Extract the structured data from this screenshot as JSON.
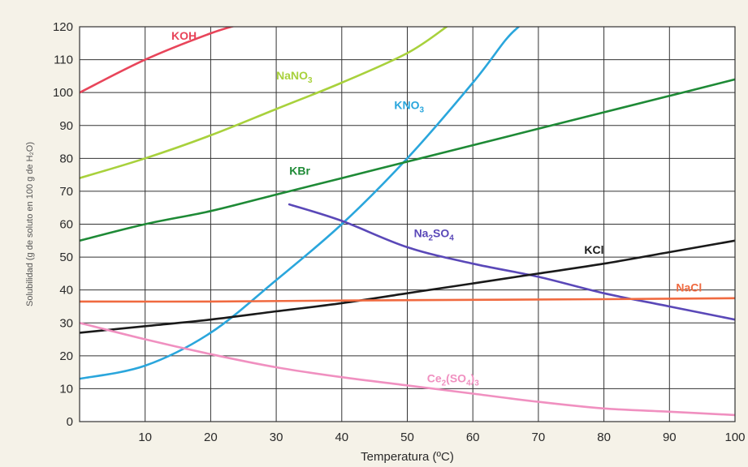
{
  "chart_data": {
    "type": "line",
    "title": "",
    "xlabel": "Temperatura (ºC)",
    "ylabel": "Solubilidad (g de soluto en 100 g de H₂O)",
    "xlim": [
      0,
      100
    ],
    "ylim": [
      0,
      120
    ],
    "x_ticks": [
      10,
      20,
      30,
      40,
      50,
      60,
      70,
      80,
      90,
      100
    ],
    "y_ticks": [
      0,
      10,
      20,
      30,
      40,
      50,
      60,
      70,
      80,
      90,
      100,
      110,
      120
    ],
    "grid": true,
    "legend": "none",
    "series": [
      {
        "name": "KOH",
        "color": "#e8455a",
        "label_at": [
          14,
          116
        ],
        "label_sub": "",
        "x": [
          0,
          10,
          20,
          25
        ],
        "y": [
          100,
          110,
          118,
          121
        ]
      },
      {
        "name": "NaNO",
        "label_sub": "3",
        "color": "#a8d13c",
        "label_at": [
          30,
          104
        ],
        "x": [
          0,
          10,
          20,
          30,
          40,
          50,
          56
        ],
        "y": [
          74,
          80,
          87,
          95,
          103,
          112,
          120
        ]
      },
      {
        "name": "KNO",
        "label_sub": "3",
        "color": "#2aa6dc",
        "label_at": [
          48,
          95
        ],
        "x": [
          0,
          10,
          20,
          30,
          40,
          50,
          60,
          65,
          67
        ],
        "y": [
          13,
          17,
          27,
          43,
          60,
          80,
          103,
          116,
          120
        ]
      },
      {
        "name": "KBr",
        "label_sub": "",
        "color": "#1e8a36",
        "label_at": [
          32,
          75
        ],
        "x": [
          0,
          10,
          20,
          30,
          40,
          50,
          60,
          70,
          80,
          90,
          100
        ],
        "y": [
          55,
          60,
          64,
          69,
          74,
          79,
          84,
          89,
          94,
          99,
          104
        ]
      },
      {
        "name": "Na",
        "label_sub": "2",
        "label_after": "SO",
        "label_sub2": "4",
        "color": "#5a48b8",
        "label_at": [
          51,
          56
        ],
        "x": [
          32,
          40,
          50,
          60,
          70,
          80,
          90,
          100
        ],
        "y": [
          66,
          61,
          53,
          48,
          44,
          39,
          35,
          31
        ]
      },
      {
        "name": "KCl",
        "label_sub": "",
        "color": "#1a1a1a",
        "label_at": [
          77,
          51
        ],
        "x": [
          0,
          10,
          20,
          30,
          40,
          50,
          60,
          70,
          80,
          90,
          100
        ],
        "y": [
          27,
          29,
          31,
          33.5,
          36,
          39,
          42,
          45,
          48,
          51.5,
          55
        ]
      },
      {
        "name": "NaCl",
        "label_sub": "",
        "color": "#f06a40",
        "label_at": [
          91,
          39.5
        ],
        "x": [
          0,
          20,
          40,
          60,
          80,
          100
        ],
        "y": [
          36.5,
          36.5,
          36.8,
          37,
          37.2,
          37.5
        ]
      },
      {
        "name": "Ce",
        "label_sub": "2",
        "label_after": "(SO",
        "label_sub2": "4",
        "label_after2": ")",
        "label_sub3": "3",
        "color": "#f090c0",
        "label_at": [
          53,
          12
        ],
        "x": [
          0,
          10,
          20,
          30,
          40,
          50,
          60,
          70,
          80,
          90,
          100
        ],
        "y": [
          30,
          25,
          20.5,
          16.5,
          13.5,
          11,
          8.5,
          6,
          4,
          3,
          2
        ]
      }
    ]
  }
}
